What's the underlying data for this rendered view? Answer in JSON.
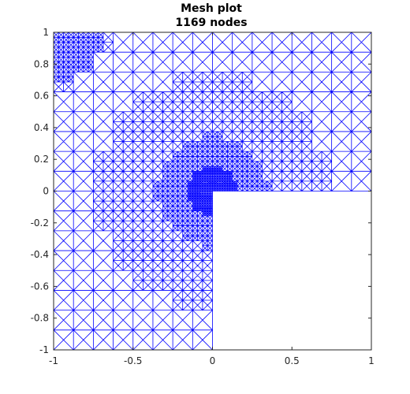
{
  "chart_data": {
    "type": "mesh",
    "title": "Mesh plot",
    "subtitle": "1169 nodes",
    "xlim": [
      -1,
      1
    ],
    "ylim": [
      -1,
      1
    ],
    "xticks": [
      -1,
      -0.5,
      0,
      0.5,
      1
    ],
    "xtick_labels": [
      "-1",
      "-0.5",
      "0",
      "0.5",
      "1"
    ],
    "yticks": [
      -1,
      -0.8,
      -0.6,
      -0.4,
      -0.2,
      0,
      0.2,
      0.4,
      0.6,
      0.8,
      1
    ],
    "ytick_labels": [
      "-1",
      "-0.8",
      "-0.6",
      "-0.4",
      "-0.2",
      "0",
      "0.2",
      "0.4",
      "0.6",
      "0.8",
      "1"
    ],
    "domain": "L-shaped",
    "domain_polygon": [
      [
        -1,
        -1
      ],
      [
        0,
        -1
      ],
      [
        0,
        0
      ],
      [
        1,
        0
      ],
      [
        1,
        1
      ],
      [
        -1,
        1
      ]
    ],
    "reentrant_corner": [
      0,
      0
    ],
    "node_count": 1169,
    "mesh_color": "#0000ff",
    "grid": false
  }
}
